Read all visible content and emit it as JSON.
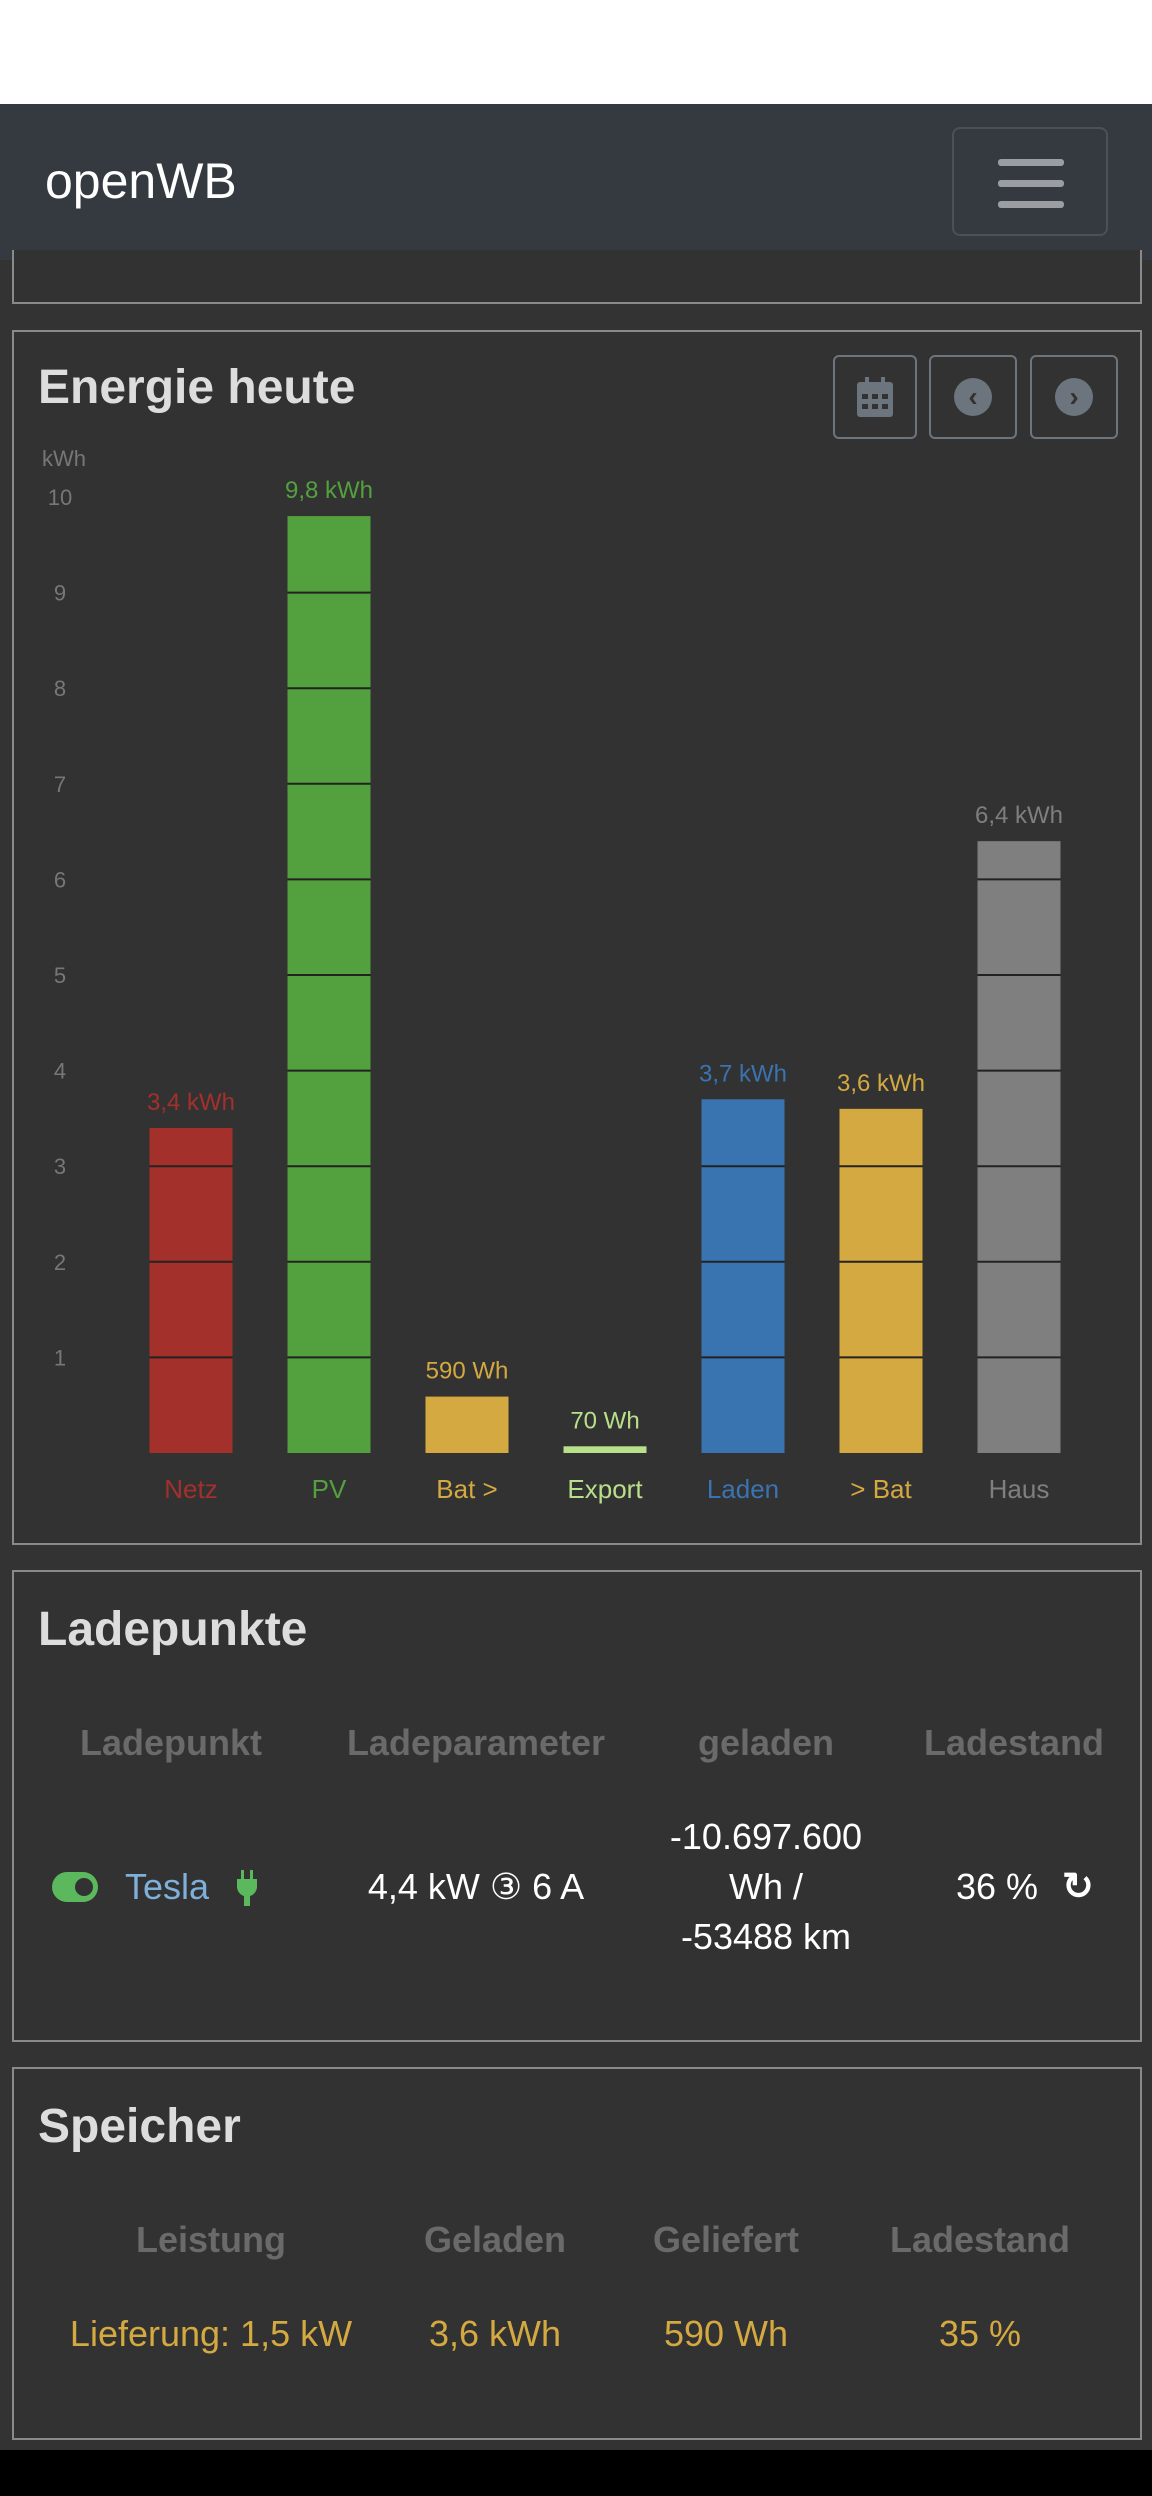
{
  "navbar": {
    "brand": "openWB",
    "menu_icon": "hamburger-icon"
  },
  "energy": {
    "title": "Energie heute",
    "buttons": [
      {
        "icon": "calendar-icon"
      },
      {
        "icon": "chevron-left-icon"
      },
      {
        "icon": "chevron-right-icon"
      }
    ]
  },
  "chart_data": {
    "type": "bar",
    "ylabel": "kWh",
    "ylim": [
      0,
      10
    ],
    "yticks": [
      1,
      2,
      3,
      4,
      5,
      6,
      7,
      8,
      9,
      10
    ],
    "grid": false,
    "categories": [
      "Netz",
      "PV",
      "Bat >",
      "Export",
      "Laden",
      "> Bat",
      "Haus"
    ],
    "values": [
      3.4,
      9.8,
      0.59,
      0.07,
      3.7,
      3.6,
      6.4
    ],
    "labels": [
      "3,4 kWh",
      "9,8 kWh",
      "590 Wh",
      "70 Wh",
      "3,7 kWh",
      "3,6 kWh",
      "6,4 kWh"
    ],
    "colors": [
      "#a4302b",
      "#53a13e",
      "#d4a941",
      "#b8e08a",
      "#3a74b0",
      "#d4a941",
      "#7f7f7f"
    ]
  },
  "ladepunkte": {
    "title": "Ladepunkte",
    "headers": [
      "Ladepunkt",
      "Ladeparameter",
      "geladen",
      "Ladestand"
    ],
    "row": {
      "name": "Tesla",
      "params": "4,4 kW ③ 6 A",
      "geladen": [
        "-10.697.600",
        "Wh /",
        "-53488 km"
      ],
      "soc": "36 %"
    },
    "colors": {
      "toggle": "#5cb85c",
      "name": "#7fb0d9",
      "plug": "#5cb85c"
    }
  },
  "speicher": {
    "title": "Speicher",
    "headers": [
      "Leistung",
      "Geladen",
      "Geliefert",
      "Ladestand"
    ],
    "values": [
      "Lieferung: 1,5 kW",
      "3,6 kWh",
      "590 Wh",
      "35 %"
    ],
    "color": "#d4a941"
  }
}
